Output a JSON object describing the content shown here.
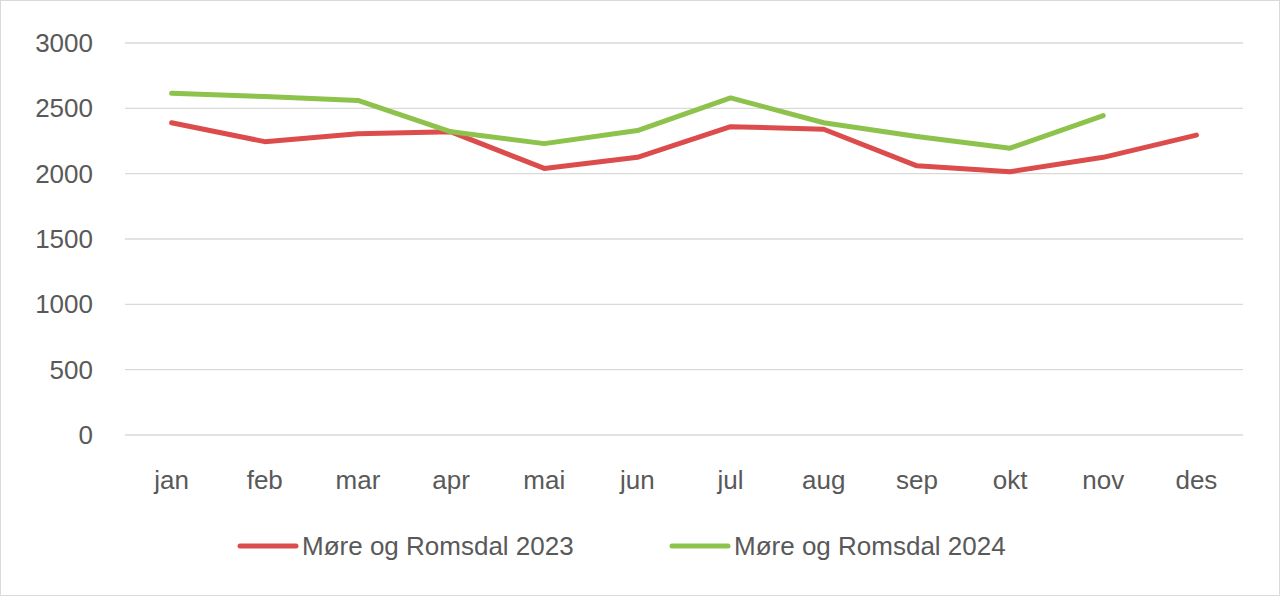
{
  "chart_data": {
    "type": "line",
    "categories": [
      "jan",
      "feb",
      "mar",
      "apr",
      "mai",
      "jun",
      "jul",
      "aug",
      "sep",
      "okt",
      "nov",
      "des"
    ],
    "series": [
      {
        "name": "Møre og Romsdal 2023",
        "color": "#dc4c4c",
        "values": [
          2390,
          2245,
          2305,
          2320,
          2040,
          2125,
          2360,
          2340,
          2060,
          2015,
          2125,
          2295
        ]
      },
      {
        "name": "Møre og Romsdal 2024",
        "color": "#8dc24c",
        "values": [
          2615,
          2590,
          2560,
          2320,
          2230,
          2330,
          2580,
          2390,
          2285,
          2195,
          2445,
          null
        ]
      }
    ],
    "ylim": [
      0,
      3000
    ],
    "yticks": [
      0,
      500,
      1000,
      1500,
      2000,
      2500,
      3000
    ],
    "grid": true,
    "legend": "bottom"
  }
}
